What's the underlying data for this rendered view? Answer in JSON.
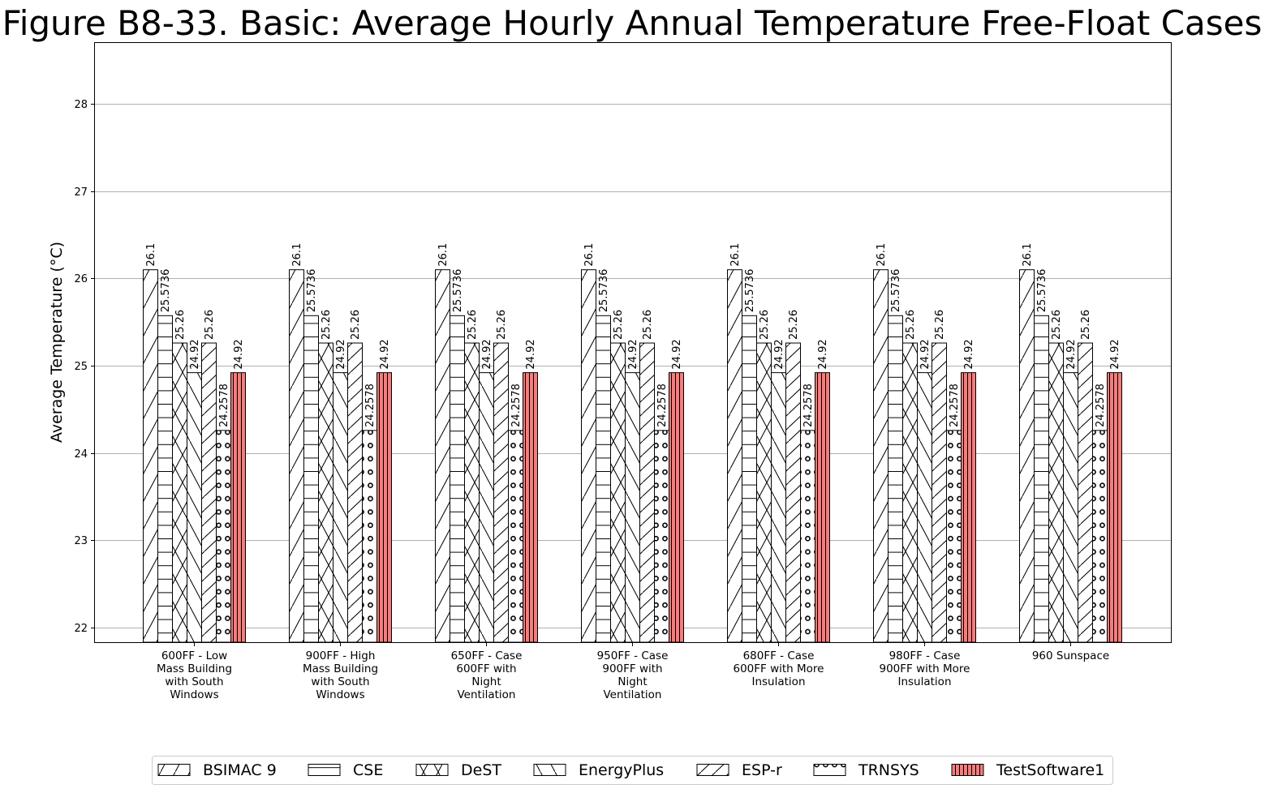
{
  "chart_data": {
    "type": "bar",
    "title": "Figure B8-33. Basic: Average Hourly Annual Temperature Free-Float Cases",
    "ylabel": "Average Temperature ( $^\\circ$C)",
    "ylabel_display": "Average Temperature (°C)",
    "xlabel": "",
    "ylim": [
      21.83,
      28.7
    ],
    "yticks": [
      22,
      23,
      24,
      25,
      26,
      27,
      28
    ],
    "grid": "y",
    "legend_position": "bottom",
    "categories": [
      "600FF - Low Mass Building with South Windows",
      "900FF - High Mass Building with South Windows",
      "650FF - Case 600FF with Night Ventilation",
      "950FF - Case 900FF with Night Ventilation",
      "680FF - Case 600FF with More Insulation",
      "980FF - Case 900FF with More Insulation",
      "960 Sunspace"
    ],
    "category_label_lines": [
      [
        "600FF - Low",
        "Mass Building",
        "with South",
        "Windows"
      ],
      [
        "900FF - High",
        "Mass Building",
        "with South",
        "Windows"
      ],
      [
        "650FF - Case",
        "600FF with",
        "Night",
        "Ventilation"
      ],
      [
        "950FF - Case",
        "900FF with",
        "Night",
        "Ventilation"
      ],
      [
        "680FF - Case",
        "600FF with More",
        "Insulation"
      ],
      [
        "980FF - Case",
        "900FF with More",
        "Insulation"
      ],
      [
        "960 Sunspace"
      ]
    ],
    "series": [
      {
        "name": "BSIMAC 9",
        "pattern": "slash",
        "color": "#ffffff",
        "values": [
          26.1,
          26.1,
          26.1,
          26.1,
          26.1,
          26.1,
          26.1
        ],
        "labels": [
          "26.1",
          "26.1",
          "26.1",
          "26.1",
          "26.1",
          "26.1",
          "26.1"
        ]
      },
      {
        "name": "CSE",
        "pattern": "horizontal",
        "color": "#ffffff",
        "values": [
          25.5736,
          25.5736,
          25.5736,
          25.5736,
          25.5736,
          25.5736,
          25.5736
        ],
        "labels": [
          "25.5736",
          "25.5736",
          "25.5736",
          "25.5736",
          "25.5736",
          "25.5736",
          "25.5736"
        ]
      },
      {
        "name": "DeST",
        "pattern": "cross",
        "color": "#ffffff",
        "values": [
          25.26,
          25.26,
          25.26,
          25.26,
          25.26,
          25.26,
          25.26
        ],
        "labels": [
          "25.26",
          "25.26",
          "25.26",
          "25.26",
          "25.26",
          "25.26",
          "25.26"
        ]
      },
      {
        "name": "EnergyPlus",
        "pattern": "backslash",
        "color": "#ffffff",
        "values": [
          24.92,
          24.92,
          24.92,
          24.92,
          24.92,
          24.92,
          24.92
        ],
        "labels": [
          "24.92",
          "24.92",
          "24.92",
          "24.92",
          "24.92",
          "24.92",
          "24.92"
        ]
      },
      {
        "name": "ESP-r",
        "pattern": "double-slash",
        "color": "#ffffff",
        "values": [
          25.26,
          25.26,
          25.26,
          25.26,
          25.26,
          25.26,
          25.26
        ],
        "labels": [
          "25.26",
          "25.26",
          "25.26",
          "25.26",
          "25.26",
          "25.26",
          "25.26"
        ]
      },
      {
        "name": "TRNSYS",
        "pattern": "circles",
        "color": "#ffffff",
        "values": [
          24.2578,
          24.2578,
          24.2578,
          24.2578,
          24.2578,
          24.2578,
          24.2578
        ],
        "labels": [
          "24.2578",
          "24.2578",
          "24.2578",
          "24.2578",
          "24.2578",
          "24.2578",
          "24.2578"
        ]
      },
      {
        "name": "TestSoftware1",
        "pattern": "vertical",
        "color": "#f77c7c",
        "values": [
          24.92,
          24.92,
          24.92,
          24.92,
          24.92,
          24.92,
          24.92
        ],
        "labels": [
          "24.92",
          "24.92",
          "24.92",
          "24.92",
          "24.92",
          "24.92",
          "24.92"
        ]
      }
    ]
  }
}
